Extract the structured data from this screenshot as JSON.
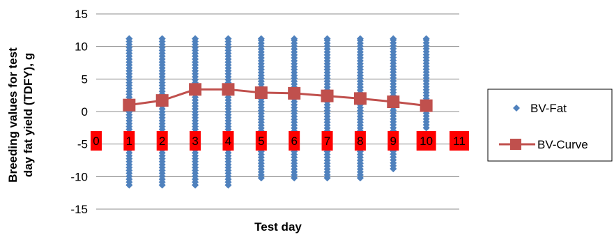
{
  "chart_data": {
    "type": "scatter",
    "ylabel": "Breeding values for test day fat yield (TDFY), g",
    "ylabel_lines": [
      "Breeding values for test",
      "day fat yield (TDFY), g"
    ],
    "xlabel": "Test day",
    "ylim": [
      -15,
      15
    ],
    "yticks": [
      15,
      10,
      5,
      0,
      -5,
      -10,
      -15
    ],
    "ytick_labels": [
      "15",
      "10",
      "5",
      "0",
      "-5",
      "-10",
      "-15"
    ],
    "xlim": [
      0,
      11
    ],
    "x_categories": [
      "0",
      "1",
      "2",
      "3",
      "4",
      "5",
      "6",
      "7",
      "8",
      "9",
      "10",
      "11"
    ],
    "x_category_label_y": -4.5,
    "grid": "horizontal",
    "legend_position": "right",
    "series": [
      {
        "name": "BV-Fat",
        "type": "scatter",
        "color": "#4F81BD",
        "marker": "diamond",
        "columns": [
          {
            "x": 1,
            "min": -11.3,
            "max": 11.2
          },
          {
            "x": 2,
            "min": -11.3,
            "max": 11.2
          },
          {
            "x": 3,
            "min": -11.3,
            "max": 11.2
          },
          {
            "x": 4,
            "min": -11.3,
            "max": 11.2
          },
          {
            "x": 5,
            "min": -10.2,
            "max": 11.2
          },
          {
            "x": 6,
            "min": -10.2,
            "max": 11.2
          },
          {
            "x": 7,
            "min": -10.2,
            "max": 11.2
          },
          {
            "x": 8,
            "min": -10.2,
            "max": 11.2
          },
          {
            "x": 9,
            "min": -8.8,
            "max": 11.2
          },
          {
            "x": 10,
            "min": -2.5,
            "max": 11.2
          }
        ]
      },
      {
        "name": "BV-Curve",
        "type": "line",
        "color": "#C0504D",
        "marker": "square",
        "x": [
          1,
          2,
          3,
          4,
          5,
          6,
          7,
          8,
          9,
          10
        ],
        "y": [
          1.0,
          1.7,
          3.4,
          3.4,
          2.9,
          2.8,
          2.4,
          2.0,
          1.5,
          0.9
        ]
      }
    ],
    "category_label_color": "#FF0000"
  }
}
